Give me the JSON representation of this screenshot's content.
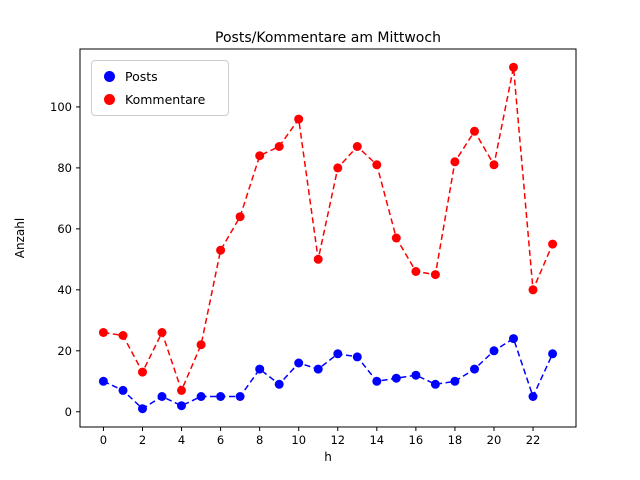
{
  "chart_data": {
    "type": "line",
    "title": "Posts/Kommentare am Mittwoch",
    "xlabel": "h",
    "ylabel": "Anzahl",
    "x": [
      0,
      1,
      2,
      3,
      4,
      5,
      6,
      7,
      8,
      9,
      10,
      11,
      12,
      13,
      14,
      15,
      16,
      17,
      18,
      19,
      20,
      21,
      22,
      23
    ],
    "series": [
      {
        "name": "Posts",
        "color": "#0000ff",
        "values": [
          10,
          7,
          1,
          5,
          2,
          5,
          5,
          5,
          14,
          9,
          16,
          14,
          19,
          18,
          10,
          11,
          12,
          9,
          10,
          14,
          20,
          24,
          5,
          19
        ]
      },
      {
        "name": "Kommentare",
        "color": "#ff0000",
        "values": [
          26,
          25,
          13,
          26,
          7,
          22,
          53,
          64,
          84,
          87,
          96,
          50,
          80,
          87,
          81,
          57,
          46,
          45,
          82,
          92,
          81,
          113,
          40,
          55
        ]
      }
    ],
    "xticks": [
      0,
      2,
      4,
      6,
      8,
      10,
      12,
      14,
      16,
      18,
      20,
      22
    ],
    "yticks": [
      0,
      20,
      40,
      60,
      80,
      100
    ],
    "xlim": [
      -1.2,
      24.2
    ],
    "ylim": [
      -5,
      119
    ],
    "line_style": "dashed",
    "marker": "circle",
    "legend_position": "upper left",
    "grid": false,
    "background_color": "#ffffff",
    "axes_color": "#000000"
  }
}
